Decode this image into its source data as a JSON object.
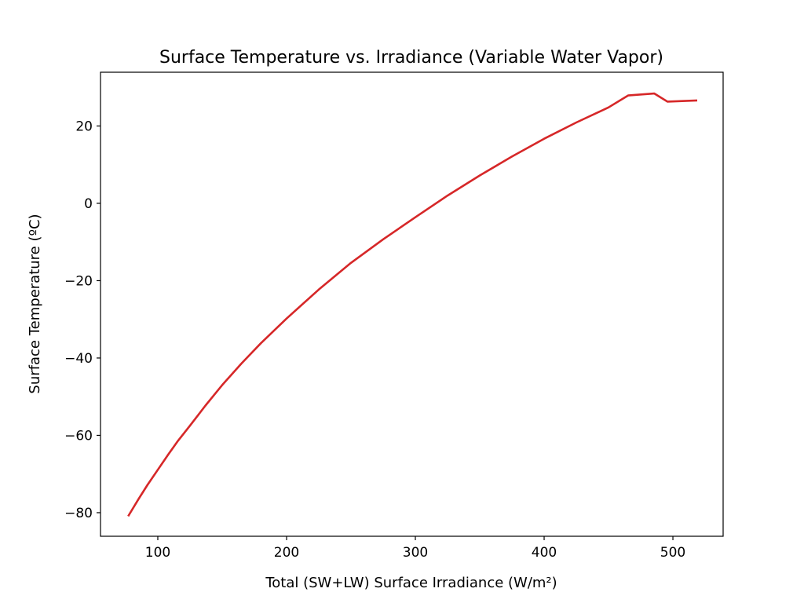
{
  "chart_data": {
    "type": "line",
    "title": "Surface Temperature vs. Irradiance (Variable Water Vapor)",
    "xlabel": "Total (SW+LW) Surface Irradiance (W/m²)",
    "ylabel": "Surface Temperature (ºC)",
    "xlim": [
      55.5,
      539
    ],
    "ylim": [
      -86.1,
      33.9
    ],
    "xticks": [
      100,
      200,
      300,
      400,
      500
    ],
    "xtick_labels": [
      "100",
      "200",
      "300",
      "400",
      "500"
    ],
    "yticks": [
      -80,
      -60,
      -40,
      -20,
      0,
      20
    ],
    "ytick_labels": [
      "−80",
      "−60",
      "−40",
      "−20",
      "0",
      "20"
    ],
    "grid": false,
    "series": [
      {
        "name": "Surface Temperature",
        "color": "#d62728",
        "x": [
          77.4,
          85,
          92,
          100,
          108,
          115.7,
          125,
          137,
          150,
          165,
          180,
          200,
          225,
          250,
          275,
          300,
          325,
          350,
          375,
          400,
          425,
          450,
          465.2,
          485.6,
          495.7,
          518.1
        ],
        "y": [
          -80.7,
          -76.5,
          -72.8,
          -68.9,
          -65.0,
          -61.4,
          -57.5,
          -52.3,
          -47.0,
          -41.4,
          -36.2,
          -29.8,
          -22.3,
          -15.4,
          -9.3,
          -3.6,
          2.0,
          7.2,
          12.1,
          16.7,
          20.9,
          24.8,
          27.9,
          28.4,
          26.3,
          26.6
        ]
      }
    ]
  }
}
